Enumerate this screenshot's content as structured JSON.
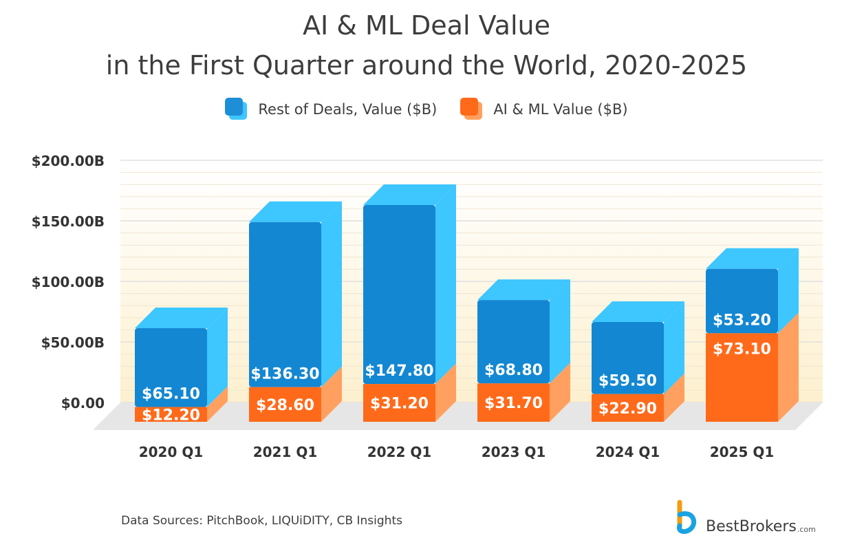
{
  "title_line1": "AI & ML Deal Value",
  "title_line2": "in the First Quarter around the World, 2020-2025",
  "legend": [
    {
      "label": "Rest of Deals, Value ($B)",
      "color_front": "#1e8fd6",
      "color_back": "#3ec6ff"
    },
    {
      "label": "AI & ML Value ($B)",
      "color_front": "#ff6a1a",
      "color_back": "#ffa060"
    }
  ],
  "chart_data": {
    "type": "bar",
    "stacked": true,
    "title": "AI & ML Deal Value in the First Quarter around the World, 2020-2025",
    "categories": [
      "2020 Q1",
      "2021 Q1",
      "2022 Q1",
      "2023 Q1",
      "2024 Q1",
      "2025 Q1"
    ],
    "series": [
      {
        "name": "AI & ML Value ($B)",
        "values": [
          12.2,
          28.6,
          31.2,
          31.7,
          22.9,
          73.1
        ],
        "labels": [
          "$12.20",
          "$28.60",
          "$31.20",
          "$31.70",
          "$22.90",
          "$73.10"
        ],
        "color_front": "#ff6a1a",
        "color_side": "#ffa060"
      },
      {
        "name": "Rest of Deals, Value ($B)",
        "values": [
          65.1,
          136.3,
          147.8,
          68.8,
          59.5,
          53.2
        ],
        "labels": [
          "$65.10",
          "$136.30",
          "$147.80",
          "$68.80",
          "$59.50",
          "$53.20"
        ],
        "color_front": "#1387d2",
        "color_side": "#3ec6ff"
      }
    ],
    "yticks": [
      0,
      50,
      100,
      150,
      200
    ],
    "ytick_labels": [
      "$0.00",
      "$50.00B",
      "$100.00B",
      "$150.00B",
      "$200.00B"
    ],
    "ylim": [
      0,
      200
    ],
    "xlabel": "",
    "ylabel": "",
    "grid": true
  },
  "source": "Data Sources: PitchBook, LIQUiDITY, CB Insights",
  "brand": {
    "name": "BestBrokers",
    "suffix": ".com",
    "colors": [
      "#f39c12",
      "#1aa3e0"
    ]
  }
}
